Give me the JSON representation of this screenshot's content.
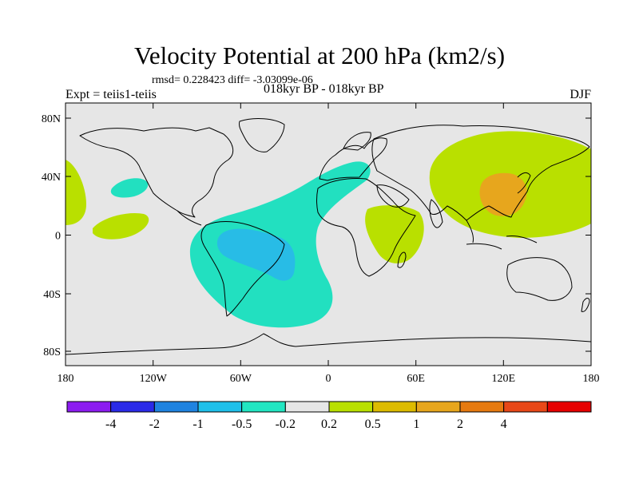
{
  "title": "Velocity Potential at 200 hPa (km2/s)",
  "rmsd_line": "rmsd= 0.228423  diff= -3.03099e-06",
  "experiment": "Expt = teiis1-teiis",
  "period": "018kyr BP - 018kyr BP",
  "season": "DJF",
  "colors": {
    "ocean_background": "#e6e6e6",
    "light_green": "#b9e000",
    "teal": "#22e0c0",
    "light_blue": "#28bce6",
    "orange": "#e7a61d",
    "coastline": "#000000"
  },
  "map": {
    "lon_ticks": [
      "180",
      "120W",
      "60W",
      "0",
      "60E",
      "120E",
      "180"
    ],
    "lat_ticks": [
      "80N",
      "40N",
      "0",
      "40S",
      "80S"
    ]
  },
  "colorbar": {
    "colors": [
      "#8c1cf0",
      "#2a2ae8",
      "#1f83e0",
      "#1fc0ea",
      "#22e6c2",
      "#e6e6e6",
      "#b9e000",
      "#ddbb00",
      "#e7a61d",
      "#e67a10",
      "#e84818",
      "#e60000"
    ],
    "labels": [
      "-4",
      "-2",
      "-1",
      "-0.5",
      "-0.2",
      "0.2",
      "0.5",
      "1",
      "2",
      "4"
    ]
  }
}
